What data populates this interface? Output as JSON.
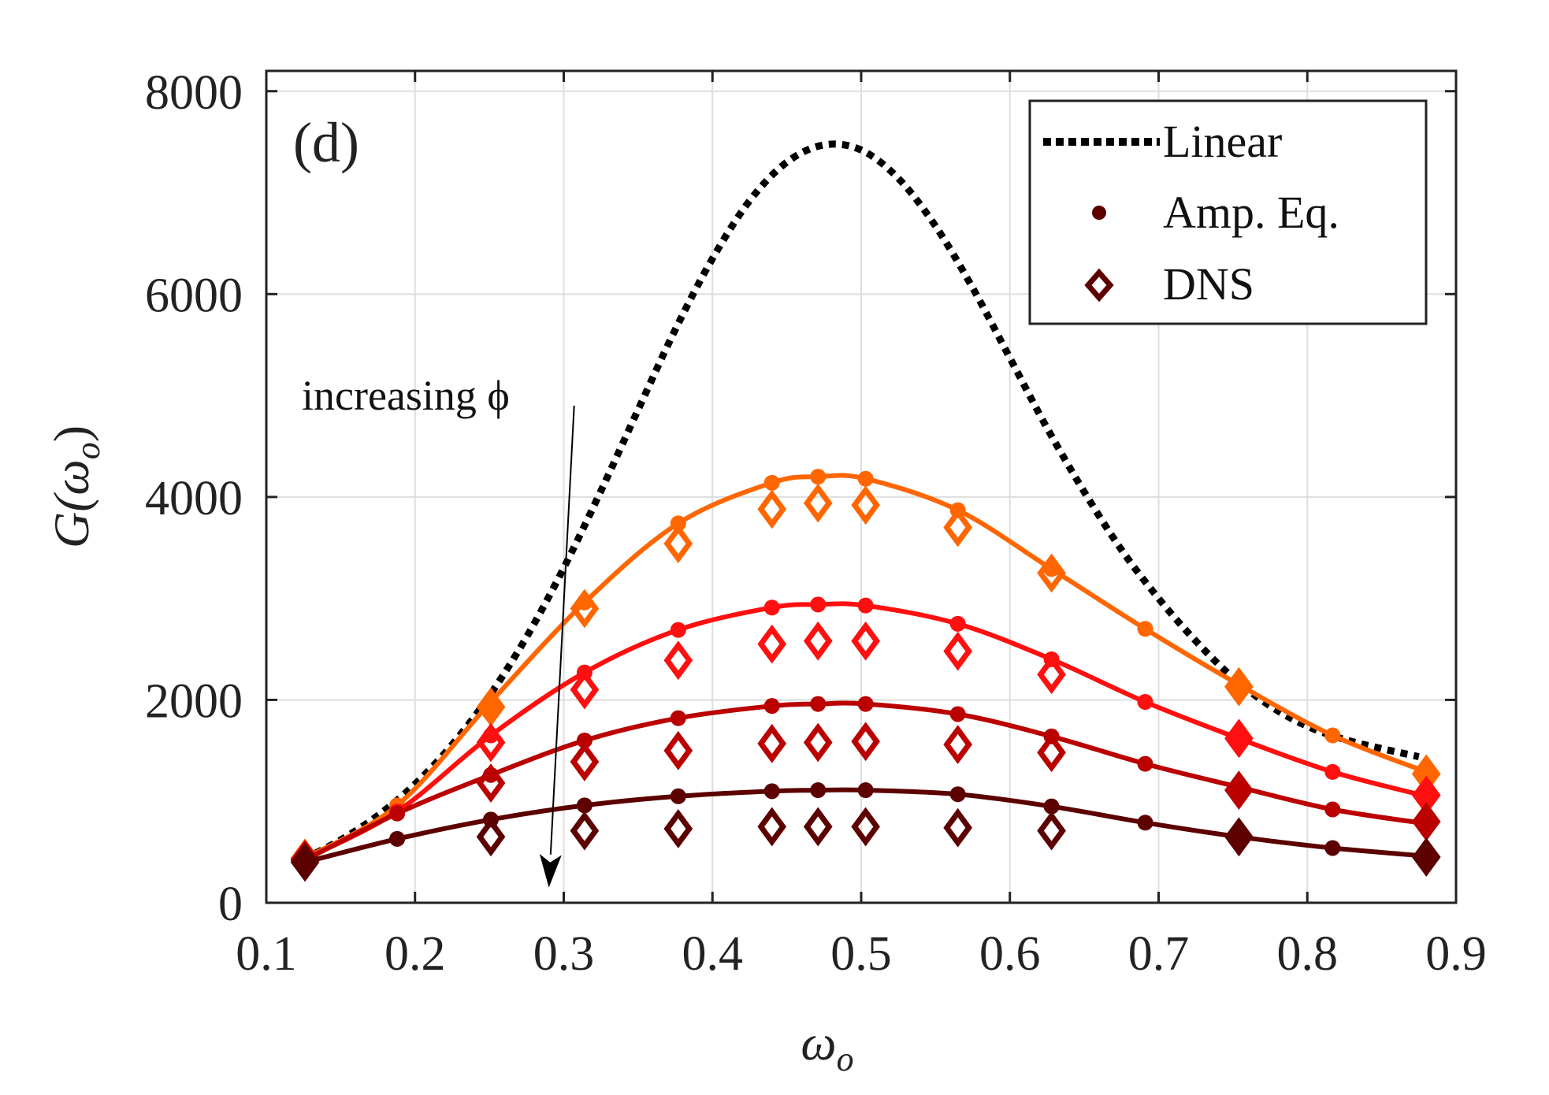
{
  "chart_data": {
    "type": "line",
    "panel_label": "(d)",
    "xlabel": "ω",
    "xlabel_sub": "o",
    "ylabel": "G(ω",
    "ylabel_sub": "o",
    "ylabel_close": ")",
    "xlim": [
      0.1,
      0.9
    ],
    "ylim": [
      0,
      8200
    ],
    "xticks": [
      0.1,
      0.2,
      0.3,
      0.4,
      0.5,
      0.6,
      0.7,
      0.8,
      0.9
    ],
    "xtick_labels": [
      "0.1",
      "0.2",
      "0.3",
      "0.4",
      "0.5",
      "0.6",
      "0.7",
      "0.8",
      "0.9"
    ],
    "yticks": [
      0,
      2000,
      4000,
      6000,
      8000
    ],
    "ytick_labels": [
      "0",
      "2000",
      "4000",
      "6000",
      "8000"
    ],
    "grid": true,
    "legend_position": "top-right",
    "legend": [
      {
        "label": "Linear",
        "marker": "dotted-line",
        "color": "#000000"
      },
      {
        "label": "Amp. Eq.",
        "marker": "dot",
        "color": "#5c0000"
      },
      {
        "label": "DNS",
        "marker": "diamond",
        "color": "#5c0000"
      }
    ],
    "annotation": {
      "text": "increasing ϕ",
      "arrow_from": [
        0.307,
        4900
      ],
      "arrow_to": [
        0.29,
        150
      ]
    },
    "linear": {
      "name": "Linear",
      "color": "#000000",
      "x": [
        0.125,
        0.15,
        0.175,
        0.2,
        0.225,
        0.25,
        0.275,
        0.3,
        0.325,
        0.35,
        0.375,
        0.4,
        0.425,
        0.45,
        0.475,
        0.5,
        0.525,
        0.55,
        0.575,
        0.6,
        0.625,
        0.65,
        0.675,
        0.7,
        0.725,
        0.75,
        0.775,
        0.8,
        0.825,
        0.85,
        0.875
      ],
      "y": [
        430,
        620,
        860,
        1170,
        1560,
        2040,
        2620,
        3300,
        4060,
        4860,
        5650,
        6350,
        6920,
        7300,
        7470,
        7420,
        7140,
        6670,
        6060,
        5370,
        4680,
        4050,
        3480,
        3000,
        2580,
        2220,
        1940,
        1740,
        1610,
        1520,
        1440
      ]
    },
    "series": [
      {
        "name": "",
        "color": "#ff6600",
        "amp_eq": {
          "x": [
            0.188,
            0.251,
            0.314,
            0.377,
            0.44,
            0.471,
            0.503,
            0.565,
            0.628,
            0.691,
            0.754,
            0.817,
            0.88
          ],
          "y": [
            960,
            1980,
            2960,
            3740,
            4140,
            4200,
            4180,
            3870,
            3290,
            2700,
            2150,
            1650,
            1290
          ]
        },
        "dns": {
          "x": [
            0.126,
            0.251,
            0.314,
            0.377,
            0.44,
            0.471,
            0.503,
            0.565,
            0.628,
            0.754,
            0.88
          ],
          "y": [
            440,
            1930,
            2900,
            3540,
            3880,
            3940,
            3920,
            3700,
            3250,
            2130,
            1270
          ],
          "filled": [
            true,
            true,
            false,
            false,
            false,
            false,
            false,
            false,
            false,
            true,
            true
          ]
        }
      },
      {
        "name": "",
        "color": "#ff0f0f",
        "amp_eq": {
          "x": [
            0.188,
            0.251,
            0.314,
            0.377,
            0.44,
            0.471,
            0.503,
            0.565,
            0.628,
            0.691,
            0.754,
            0.817,
            0.88
          ],
          "y": [
            900,
            1650,
            2270,
            2690,
            2910,
            2940,
            2930,
            2750,
            2400,
            1980,
            1620,
            1290,
            1050
          ]
        },
        "dns": {
          "x": [
            0.126,
            0.251,
            0.314,
            0.377,
            0.44,
            0.471,
            0.503,
            0.565,
            0.628,
            0.754,
            0.88
          ],
          "y": [
            430,
            1580,
            2100,
            2390,
            2550,
            2580,
            2580,
            2480,
            2250,
            1620,
            1060
          ],
          "filled": [
            true,
            false,
            false,
            false,
            false,
            false,
            false,
            false,
            false,
            true,
            true
          ]
        }
      },
      {
        "name": "",
        "color": "#bb0000",
        "amp_eq": {
          "x": [
            0.188,
            0.251,
            0.314,
            0.377,
            0.44,
            0.471,
            0.503,
            0.565,
            0.628,
            0.691,
            0.754,
            0.817,
            0.88
          ],
          "y": [
            880,
            1260,
            1600,
            1820,
            1940,
            1960,
            1960,
            1860,
            1640,
            1370,
            1140,
            920,
            780
          ]
        },
        "dns": {
          "x": [
            0.126,
            0.251,
            0.314,
            0.377,
            0.44,
            0.471,
            0.503,
            0.565,
            0.628,
            0.754,
            0.88
          ],
          "y": [
            420,
            1180,
            1390,
            1500,
            1570,
            1580,
            1590,
            1560,
            1480,
            1110,
            800
          ],
          "filled": [
            true,
            false,
            false,
            false,
            false,
            false,
            false,
            false,
            false,
            true,
            true
          ]
        }
      },
      {
        "name": "",
        "color": "#5c0000",
        "amp_eq": {
          "x": [
            0.188,
            0.251,
            0.314,
            0.377,
            0.44,
            0.471,
            0.503,
            0.565,
            0.628,
            0.691,
            0.754,
            0.817,
            0.88
          ],
          "y": [
            630,
            820,
            960,
            1050,
            1100,
            1110,
            1110,
            1070,
            950,
            790,
            650,
            540,
            460
          ]
        },
        "dns": {
          "x": [
            0.126,
            0.251,
            0.314,
            0.377,
            0.44,
            0.471,
            0.503,
            0.565,
            0.628,
            0.754,
            0.88
          ],
          "y": [
            400,
            650,
            710,
            730,
            750,
            750,
            750,
            740,
            710,
            650,
            450
          ],
          "filled": [
            true,
            false,
            false,
            false,
            false,
            false,
            false,
            false,
            false,
            true,
            true
          ]
        }
      }
    ]
  }
}
